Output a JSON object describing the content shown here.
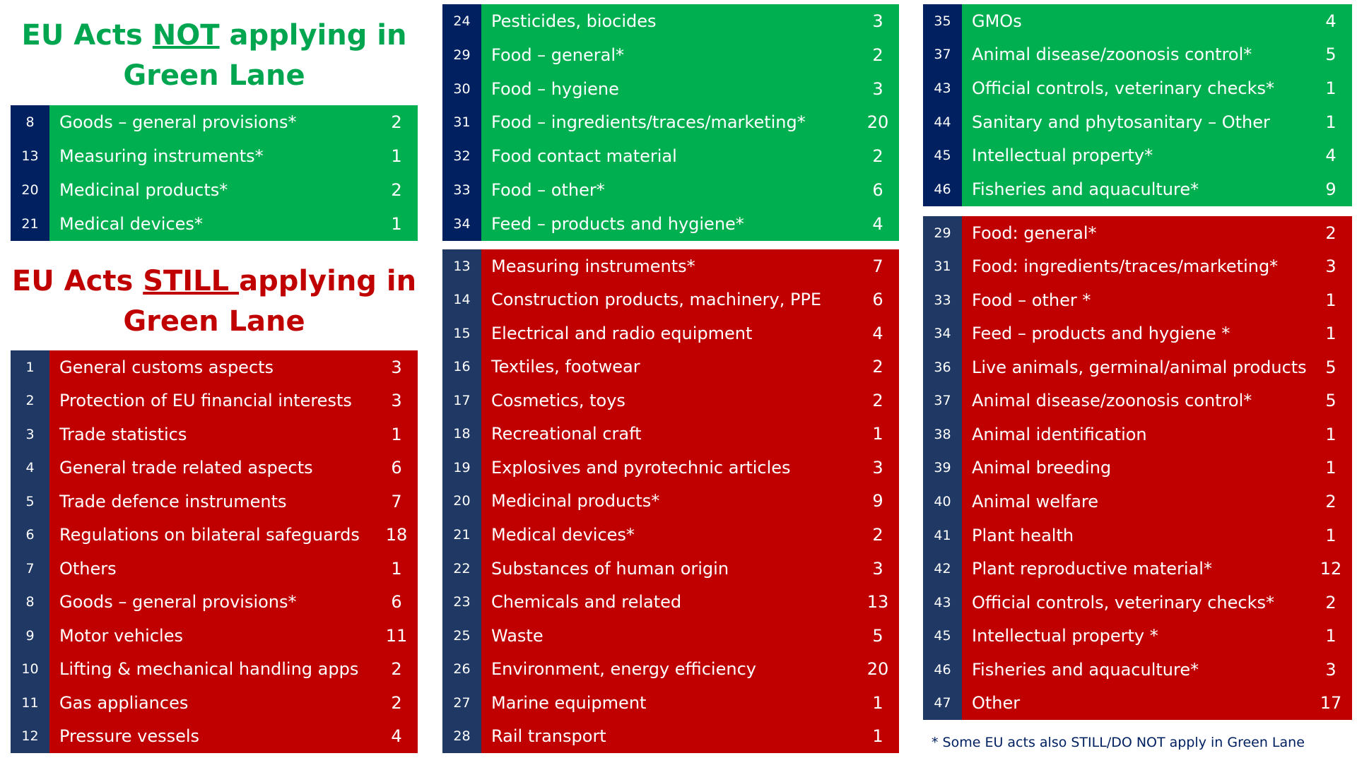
{
  "title_not": {
    "before": "EU Acts ",
    "emphasis": "NOT",
    "after": " applying in",
    "line2": "Green Lane"
  },
  "title_still": {
    "before": "EU Acts ",
    "emphasis": "STILL ",
    "after": "applying in",
    "line2": "Green Lane"
  },
  "tables": [
    {
      "rows": [
        [
          8,
          "Goods – general provisions*",
          2
        ],
        [
          13,
          "Measuring instruments*",
          1
        ],
        [
          20,
          "Medicinal products*",
          2
        ],
        [
          21,
          "Medical devices*",
          1
        ]
      ]
    },
    {
      "rows": [
        [
          1,
          "General customs aspects",
          3
        ],
        [
          2,
          "Protection of EU financial interests",
          3
        ],
        [
          3,
          "Trade statistics",
          1
        ],
        [
          4,
          "General trade related aspects",
          6
        ],
        [
          5,
          "Trade defence instruments",
          7
        ],
        [
          6,
          "Regulations on bilateral safeguards",
          18
        ],
        [
          7,
          "Others",
          1
        ],
        [
          8,
          "Goods – general provisions*",
          6
        ],
        [
          9,
          "Motor vehicles",
          11
        ],
        [
          10,
          "Lifting & mechanical handling apps",
          2
        ],
        [
          11,
          "Gas appliances",
          2
        ],
        [
          12,
          "Pressure vessels",
          4
        ]
      ]
    },
    {
      "rows": [
        [
          24,
          "Pesticides, biocides",
          3
        ],
        [
          29,
          "Food – general*",
          2
        ],
        [
          30,
          "Food – hygiene",
          3
        ],
        [
          31,
          "Food – ingredients/traces/marketing*",
          20
        ],
        [
          32,
          "Food contact material",
          2
        ],
        [
          33,
          "Food – other*",
          6
        ],
        [
          34,
          "Feed – products and hygiene*",
          4
        ]
      ]
    },
    {
      "rows": [
        [
          13,
          "Measuring instruments*",
          7
        ],
        [
          14,
          "Construction products, machinery, PPE",
          6
        ],
        [
          15,
          "Electrical and radio equipment",
          4
        ],
        [
          16,
          "Textiles, footwear",
          2
        ],
        [
          17,
          "Cosmetics, toys",
          2
        ],
        [
          18,
          "Recreational craft",
          1
        ],
        [
          19,
          "Explosives and pyrotechnic articles",
          3
        ],
        [
          20,
          "Medicinal products*",
          9
        ],
        [
          21,
          "Medical devices*",
          2
        ],
        [
          22,
          "Substances of human origin",
          3
        ],
        [
          23,
          "Chemicals and related",
          13
        ],
        [
          25,
          "Waste",
          5
        ],
        [
          26,
          "Environment, energy efficiency",
          20
        ],
        [
          27,
          "Marine equipment",
          1
        ],
        [
          28,
          "Rail transport",
          1
        ]
      ]
    },
    {
      "rows": [
        [
          35,
          "GMOs",
          4
        ],
        [
          37,
          "Animal disease/zoonosis control*",
          5
        ],
        [
          43,
          "Official controls, veterinary checks*",
          1
        ],
        [
          44,
          "Sanitary and phytosanitary – Other",
          1
        ],
        [
          45,
          "Intellectual property*",
          4
        ],
        [
          46,
          "Fisheries and aquaculture*",
          9
        ]
      ]
    },
    {
      "rows": [
        [
          29,
          "Food: general*",
          2
        ],
        [
          31,
          "Food: ingredients/traces/marketing*",
          3
        ],
        [
          33,
          "Food – other *",
          1
        ],
        [
          34,
          "Feed – products and hygiene *",
          1
        ],
        [
          36,
          "Live animals, germinal/animal products",
          5
        ],
        [
          37,
          "Animal disease/zoonosis control*",
          5
        ],
        [
          38,
          "Animal identification",
          1
        ],
        [
          39,
          "Animal breeding",
          1
        ],
        [
          40,
          "Animal welfare",
          2
        ],
        [
          41,
          "Plant health",
          1
        ],
        [
          42,
          "Plant reproductive material*",
          12
        ],
        [
          43,
          "Official controls, veterinary checks*",
          2
        ],
        [
          45,
          "Intellectual property *",
          1
        ],
        [
          46,
          "Fisheries and aquaculture*",
          3
        ],
        [
          47,
          "Other",
          17
        ]
      ]
    }
  ],
  "footnote": "* Some EU acts also STILL/DO NOT apply in Green Lane"
}
